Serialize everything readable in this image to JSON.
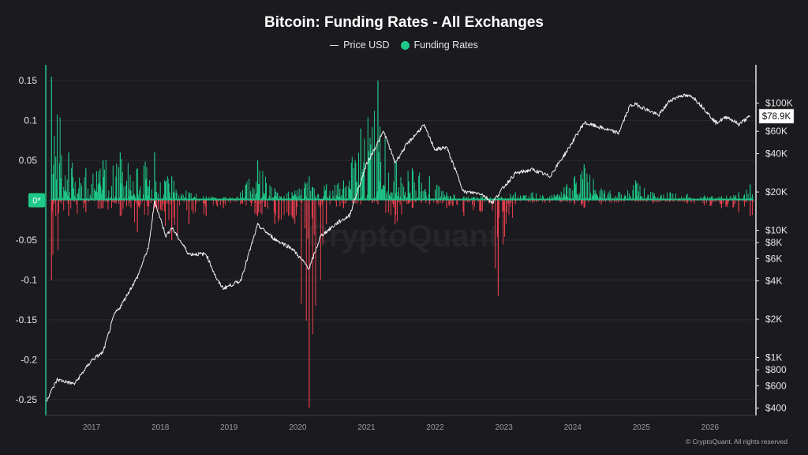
{
  "chart_data": {
    "type": "bar",
    "title": "Bitcoin: Funding Rates - All Exchanges",
    "legend": {
      "placement": "top-center",
      "items": [
        {
          "name": "Price USD",
          "symbol": "line",
          "color": "#e6e6e6"
        },
        {
          "name": "Funding Rates",
          "symbol": "dot",
          "color": "#1fc98a"
        }
      ]
    },
    "colors": {
      "positive": "#1fc98a",
      "negative": "#e8404e",
      "price": "#f2f2f2",
      "background": "#1b1b1f"
    },
    "grid": true,
    "x_axis": {
      "type": "time",
      "range": [
        "2016-05",
        "2026-09"
      ],
      "tick_labels": [
        "2017",
        "2018",
        "2019",
        "2020",
        "2021",
        "2022",
        "2023",
        "2024",
        "2025",
        "2026"
      ]
    },
    "y_left": {
      "label": "",
      "range": [
        -0.27,
        0.17
      ],
      "ticks": [
        0.15,
        0.1,
        0.05,
        0,
        -0.05,
        -0.1,
        -0.15,
        -0.2,
        -0.25
      ],
      "tick_labels": [
        "0.15",
        "0.1",
        "0.05",
        "0*",
        "-0.05",
        "-0.1",
        "-0.15",
        "-0.2",
        "-0.25"
      ]
    },
    "y_right": {
      "label": "",
      "scale": "log",
      "range": [
        350,
        200000
      ],
      "ticks": [
        100000,
        60000,
        40000,
        20000,
        10000,
        8000,
        6000,
        4000,
        2000,
        1000,
        800,
        600,
        400
      ],
      "tick_labels": [
        "$100K",
        "$60K",
        "$40K",
        "$20K",
        "$10K",
        "$8K",
        "$6K",
        "$4K",
        "$2K",
        "$1K",
        "$800",
        "$600",
        "$400"
      ],
      "current_value_label": "$78.9K"
    },
    "series": [
      {
        "name": "Funding Rates",
        "type": "bar",
        "axis": "left",
        "x": [
          "2016-06",
          "2016-09",
          "2016-12",
          "2017-03",
          "2017-06",
          "2017-09",
          "2017-12",
          "2018-03",
          "2018-06",
          "2018-09",
          "2018-12",
          "2019-03",
          "2019-06",
          "2019-09",
          "2019-12",
          "2020-03",
          "2020-06",
          "2020-09",
          "2020-12",
          "2021-03",
          "2021-06",
          "2021-09",
          "2021-12",
          "2022-03",
          "2022-06",
          "2022-09",
          "2022-12",
          "2023-03",
          "2023-06",
          "2023-09",
          "2023-12",
          "2024-03",
          "2024-06",
          "2024-09",
          "2024-12",
          "2025-03",
          "2025-06",
          "2025-09",
          "2025-12",
          "2026-03",
          "2026-06",
          "2026-08"
        ],
        "max": [
          0.155,
          0.06,
          0.04,
          0.05,
          0.06,
          0.04,
          0.06,
          0.03,
          0.01,
          0.005,
          0.004,
          0.01,
          0.05,
          0.015,
          0.01,
          0.03,
          0.02,
          0.025,
          0.09,
          0.15,
          0.05,
          0.04,
          0.03,
          0.01,
          0.005,
          0.005,
          0.004,
          0.01,
          0.01,
          0.005,
          0.02,
          0.045,
          0.015,
          0.01,
          0.025,
          0.01,
          0.01,
          0.008,
          0.006,
          0.005,
          0.01,
          0.02
        ],
        "min": [
          -0.1,
          -0.02,
          -0.015,
          -0.01,
          -0.02,
          -0.04,
          -0.01,
          -0.05,
          -0.03,
          -0.02,
          -0.01,
          -0.005,
          -0.02,
          -0.03,
          -0.02,
          -0.26,
          -0.03,
          -0.01,
          -0.005,
          -0.005,
          -0.03,
          -0.01,
          -0.005,
          -0.01,
          -0.02,
          -0.015,
          -0.12,
          -0.005,
          -0.003,
          -0.003,
          -0.002,
          -0.01,
          -0.005,
          -0.003,
          -0.002,
          -0.003,
          -0.002,
          -0.004,
          -0.006,
          -0.01,
          -0.015,
          -0.02
        ]
      },
      {
        "name": "Price USD",
        "type": "line",
        "axis": "right",
        "x": [
          "2016-05",
          "2016-07",
          "2016-10",
          "2017-01",
          "2017-03",
          "2017-05",
          "2017-06",
          "2017-09",
          "2017-11",
          "2017-12",
          "2018-02",
          "2018-03",
          "2018-06",
          "2018-09",
          "2018-11",
          "2018-12",
          "2019-03",
          "2019-06",
          "2019-09",
          "2019-12",
          "2020-03",
          "2020-05",
          "2020-08",
          "2020-10",
          "2020-12",
          "2021-01",
          "2021-04",
          "2021-06",
          "2021-08",
          "2021-11",
          "2022-01",
          "2022-03",
          "2022-06",
          "2022-09",
          "2022-11",
          "2023-01",
          "2023-03",
          "2023-06",
          "2023-09",
          "2023-12",
          "2024-03",
          "2024-06",
          "2024-09",
          "2024-11",
          "2024-12",
          "2025-04",
          "2025-06",
          "2025-08",
          "2025-10",
          "2025-12",
          "2026-02",
          "2026-04",
          "2026-06",
          "2026-08"
        ],
        "values": [
          450,
          670,
          620,
          950,
          1100,
          2200,
          2500,
          4300,
          7500,
          17000,
          9000,
          10500,
          6500,
          6500,
          4000,
          3500,
          4000,
          11000,
          8500,
          7200,
          5000,
          9000,
          11500,
          13000,
          24000,
          33000,
          60000,
          34000,
          47000,
          67000,
          43000,
          45000,
          20000,
          19500,
          16500,
          22000,
          28000,
          30000,
          26500,
          42000,
          70000,
          64000,
          58000,
          95000,
          98000,
          80000,
          105000,
          115000,
          112000,
          90000,
          70000,
          78000,
          68000,
          78900
        ]
      }
    ]
  },
  "watermark": "CryptoQuant",
  "footer": "© CryptoQuant. All rights reserved"
}
